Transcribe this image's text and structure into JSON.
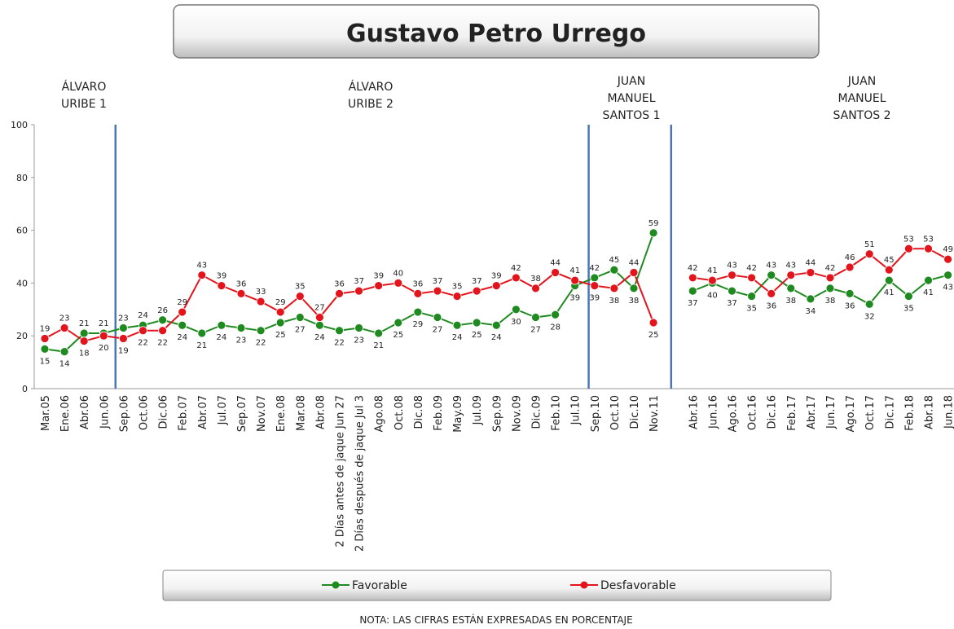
{
  "chart_data": {
    "type": "line",
    "title": "Gustavo Petro Urrego",
    "periods": [
      {
        "label": [
          "ÁLVARO",
          "URIBE 1"
        ]
      },
      {
        "label": [
          "ÁLVARO",
          "URIBE 2"
        ]
      },
      {
        "label": [
          "JUAN",
          "MANUEL",
          "SANTOS 1"
        ]
      },
      {
        "label": [
          "JUAN",
          "MANUEL",
          "SANTOS 2"
        ]
      }
    ],
    "categories": [
      "Mar.05",
      "Ene.06",
      "Abr.06",
      "Jun.06",
      "Sep.06",
      "Oct.06",
      "Dic.06",
      "Feb.07",
      "Abr.07",
      "Jul.07",
      "Sep.07",
      "Nov.07",
      "Ene.08",
      "Mar.08",
      "Abr.08",
      "2 Días antes de jaque Jun 27",
      "2 Días después de jaque Jul 3",
      "Ago.08",
      "Oct.08",
      "Dic.08",
      "Feb.09",
      "May.09",
      "Jul.09",
      "Sep.09",
      "Nov.09",
      "Dic.09",
      "Feb.10",
      "Jul.10",
      "Sep.10",
      "Oct.10",
      "Dic.10",
      "Nov.11",
      null,
      "Abr.16",
      "Jun.16",
      "Ago.16",
      "Oct.16",
      "Dic.16",
      "Feb.17",
      "Abr.17",
      "Jun.17",
      "Ago.17",
      "Oct.17",
      "Dic.17",
      "Feb.18",
      "Abr.18",
      "Jun.18"
    ],
    "series": [
      {
        "name": "Favorable",
        "color": "#1f8a1f",
        "values": [
          15,
          14,
          21,
          21,
          23,
          24,
          26,
          24,
          21,
          24,
          23,
          22,
          25,
          27,
          24,
          22,
          23,
          21,
          25,
          29,
          27,
          24,
          25,
          24,
          30,
          27,
          28,
          39,
          42,
          45,
          38,
          59,
          null,
          37,
          40,
          37,
          35,
          43,
          38,
          34,
          38,
          36,
          32,
          41,
          35,
          41,
          43
        ]
      },
      {
        "name": "Desfavorable",
        "color": "#e3141c",
        "values": [
          19,
          23,
          18,
          20,
          19,
          22,
          22,
          29,
          43,
          39,
          36,
          33,
          29,
          35,
          27,
          36,
          37,
          39,
          40,
          36,
          37,
          35,
          37,
          39,
          42,
          38,
          44,
          41,
          39,
          38,
          44,
          25,
          null,
          42,
          41,
          43,
          42,
          36,
          43,
          44,
          42,
          46,
          51,
          45,
          53,
          53,
          49
        ]
      }
    ],
    "ylim": [
      0,
      100
    ],
    "yticks": [
      0,
      20,
      40,
      60,
      80,
      100
    ],
    "note": "NOTA: LAS CIFRAS ESTÁN EXPRESADAS EN PORCENTAJE"
  }
}
